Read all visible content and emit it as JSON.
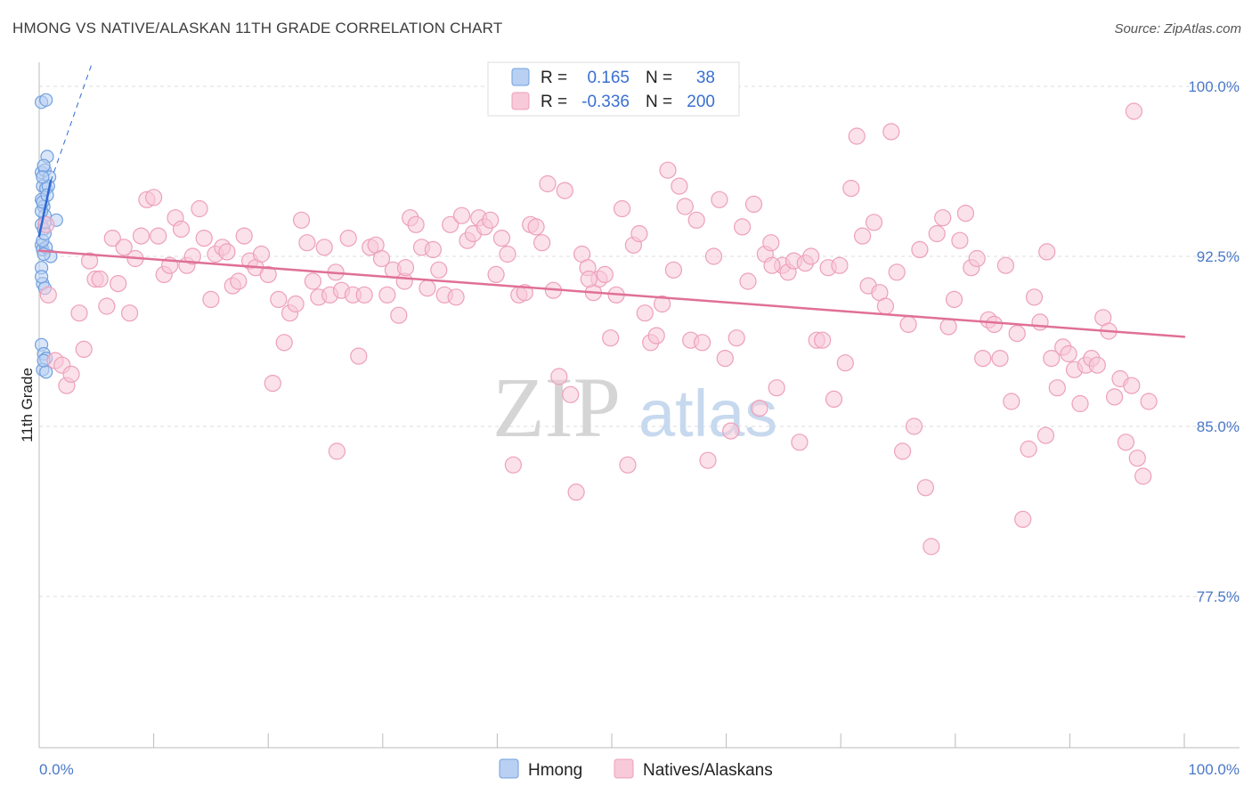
{
  "title": "HMONG VS NATIVE/ALASKAN 11TH GRADE CORRELATION CHART",
  "source": "Source: ZipAtlas.com",
  "watermark": {
    "part1": "ZIP",
    "part2": "atlas"
  },
  "chart_data": {
    "type": "scatter",
    "title": "HMONG VS NATIVE/ALASKAN 11TH GRADE CORRELATION CHART",
    "xlabel": "",
    "ylabel": "11th Grade",
    "xlim": [
      0,
      100
    ],
    "ylim": [
      70.5,
      101.5
    ],
    "x_tick_labels": [
      "0.0%",
      "100.0%"
    ],
    "y_ticks": [
      {
        "value": 100.0,
        "label": "100.0%"
      },
      {
        "value": 92.5,
        "label": "92.5%"
      },
      {
        "value": 85.0,
        "label": "85.0%"
      },
      {
        "value": 77.5,
        "label": "77.5%"
      }
    ],
    "legend": {
      "rows": [
        {
          "r_label": "R =",
          "r_value": "0.165",
          "n_label": "N =",
          "n_value": "38"
        },
        {
          "r_label": "R =",
          "r_value": "-0.336",
          "n_label": "N =",
          "n_value": "200"
        }
      ]
    },
    "series": [
      {
        "name": "Hmong",
        "color": "#6fa0de",
        "fill": "#b9d0f2",
        "trend": {
          "x1": 0.0,
          "y1": 93.4,
          "x2": 1.0,
          "y2": 95.8,
          "color": "#2f6ad4"
        },
        "trend_ext": {
          "x1": 1.0,
          "y1": 95.8,
          "x2": 4.6,
          "y2": 101.0
        },
        "points": [
          [
            0.2,
            99.3
          ],
          [
            0.6,
            99.4
          ],
          [
            0.2,
            96.2
          ],
          [
            0.5,
            96.3
          ],
          [
            0.7,
            96.9
          ],
          [
            0.9,
            96.0
          ],
          [
            0.3,
            95.6
          ],
          [
            0.6,
            95.5
          ],
          [
            0.8,
            95.6
          ],
          [
            0.2,
            95.0
          ],
          [
            0.4,
            94.7
          ],
          [
            0.5,
            94.3
          ],
          [
            1.5,
            94.1
          ],
          [
            0.2,
            93.9
          ],
          [
            0.4,
            93.7
          ],
          [
            0.2,
            93.0
          ],
          [
            0.3,
            92.8
          ],
          [
            0.6,
            92.9
          ],
          [
            1.0,
            92.5
          ],
          [
            0.2,
            92.0
          ],
          [
            0.3,
            91.3
          ],
          [
            0.5,
            91.1
          ],
          [
            0.2,
            88.6
          ],
          [
            0.4,
            88.2
          ],
          [
            0.6,
            88.0
          ],
          [
            0.3,
            87.5
          ],
          [
            0.6,
            87.4
          ],
          [
            0.2,
            94.5
          ],
          [
            0.3,
            93.2
          ],
          [
            0.4,
            96.5
          ],
          [
            0.3,
            94.9
          ],
          [
            0.7,
            95.2
          ],
          [
            0.5,
            93.5
          ],
          [
            0.2,
            91.6
          ],
          [
            0.4,
            87.9
          ],
          [
            0.3,
            96.0
          ],
          [
            0.5,
            94.0
          ],
          [
            0.4,
            92.6
          ]
        ]
      },
      {
        "name": "Natives/Alaskans",
        "color": "#eda0b9",
        "fill": "#f8c9d8",
        "trend": {
          "x1": 0.0,
          "y1": 92.75,
          "x2": 100.0,
          "y2": 88.95,
          "color": "#e07096"
        },
        "points": [
          [
            0.6,
            93.9
          ],
          [
            0.8,
            90.8
          ],
          [
            1.4,
            87.9
          ],
          [
            2.0,
            87.7
          ],
          [
            2.4,
            86.8
          ],
          [
            2.8,
            87.3
          ],
          [
            3.5,
            90.0
          ],
          [
            3.9,
            88.4
          ],
          [
            4.4,
            92.3
          ],
          [
            4.9,
            91.5
          ],
          [
            5.3,
            91.5
          ],
          [
            5.9,
            90.3
          ],
          [
            6.4,
            93.3
          ],
          [
            6.9,
            91.3
          ],
          [
            7.4,
            92.9
          ],
          [
            7.9,
            90.0
          ],
          [
            8.4,
            92.4
          ],
          [
            8.9,
            93.4
          ],
          [
            9.4,
            95.0
          ],
          [
            10.0,
            95.1
          ],
          [
            10.4,
            93.4
          ],
          [
            10.9,
            91.7
          ],
          [
            11.4,
            92.1
          ],
          [
            11.9,
            94.2
          ],
          [
            12.4,
            93.7
          ],
          [
            12.9,
            92.1
          ],
          [
            13.4,
            92.5
          ],
          [
            14.0,
            94.6
          ],
          [
            14.4,
            93.3
          ],
          [
            15.0,
            90.6
          ],
          [
            15.4,
            92.6
          ],
          [
            16.0,
            92.9
          ],
          [
            16.4,
            92.7
          ],
          [
            16.9,
            91.2
          ],
          [
            17.4,
            91.4
          ],
          [
            17.9,
            93.4
          ],
          [
            18.4,
            92.3
          ],
          [
            18.9,
            92.0
          ],
          [
            19.4,
            92.6
          ],
          [
            20.0,
            91.7
          ],
          [
            20.4,
            86.9
          ],
          [
            20.9,
            90.6
          ],
          [
            21.4,
            88.7
          ],
          [
            21.9,
            90.0
          ],
          [
            22.4,
            90.4
          ],
          [
            22.9,
            94.1
          ],
          [
            23.4,
            93.1
          ],
          [
            23.9,
            91.4
          ],
          [
            24.4,
            90.7
          ],
          [
            24.9,
            92.9
          ],
          [
            25.4,
            90.8
          ],
          [
            25.9,
            91.8
          ],
          [
            26.0,
            83.9
          ],
          [
            26.4,
            91.0
          ],
          [
            27.0,
            93.3
          ],
          [
            27.4,
            90.8
          ],
          [
            27.9,
            88.1
          ],
          [
            28.4,
            90.8
          ],
          [
            28.9,
            92.9
          ],
          [
            29.4,
            93.0
          ],
          [
            29.9,
            92.4
          ],
          [
            30.4,
            90.8
          ],
          [
            30.9,
            91.9
          ],
          [
            31.4,
            89.9
          ],
          [
            31.9,
            91.4
          ],
          [
            32.4,
            94.2
          ],
          [
            32.9,
            93.9
          ],
          [
            33.4,
            92.9
          ],
          [
            33.9,
            91.1
          ],
          [
            34.4,
            92.8
          ],
          [
            34.9,
            91.9
          ],
          [
            35.4,
            90.8
          ],
          [
            35.9,
            93.9
          ],
          [
            36.4,
            90.7
          ],
          [
            36.9,
            94.3
          ],
          [
            37.4,
            93.2
          ],
          [
            37.9,
            93.5
          ],
          [
            38.4,
            94.2
          ],
          [
            38.9,
            93.8
          ],
          [
            39.4,
            94.1
          ],
          [
            39.9,
            91.7
          ],
          [
            40.4,
            93.3
          ],
          [
            40.9,
            92.6
          ],
          [
            41.4,
            83.3
          ],
          [
            41.9,
            90.8
          ],
          [
            42.4,
            90.9
          ],
          [
            42.9,
            93.9
          ],
          [
            43.4,
            93.8
          ],
          [
            43.9,
            93.1
          ],
          [
            44.4,
            95.7
          ],
          [
            44.9,
            91.0
          ],
          [
            45.4,
            87.2
          ],
          [
            45.9,
            95.4
          ],
          [
            46.4,
            86.4
          ],
          [
            46.9,
            82.1
          ],
          [
            47.4,
            92.6
          ],
          [
            47.9,
            92.0
          ],
          [
            48.4,
            90.9
          ],
          [
            48.9,
            91.5
          ],
          [
            49.4,
            91.7
          ],
          [
            49.9,
            88.9
          ],
          [
            50.4,
            90.8
          ],
          [
            50.9,
            94.6
          ],
          [
            51.4,
            83.3
          ],
          [
            51.9,
            93.0
          ],
          [
            52.4,
            93.5
          ],
          [
            52.9,
            90.0
          ],
          [
            53.4,
            88.7
          ],
          [
            53.9,
            89.0
          ],
          [
            54.4,
            90.4
          ],
          [
            54.9,
            96.3
          ],
          [
            55.4,
            91.9
          ],
          [
            55.9,
            95.6
          ],
          [
            56.4,
            94.7
          ],
          [
            56.9,
            88.8
          ],
          [
            57.4,
            94.1
          ],
          [
            57.9,
            88.7
          ],
          [
            58.4,
            83.5
          ],
          [
            58.9,
            92.5
          ],
          [
            59.4,
            95.0
          ],
          [
            59.9,
            88.0
          ],
          [
            60.4,
            84.8
          ],
          [
            60.9,
            88.9
          ],
          [
            61.4,
            93.8
          ],
          [
            61.9,
            91.4
          ],
          [
            62.4,
            94.8
          ],
          [
            62.9,
            85.8
          ],
          [
            63.4,
            92.6
          ],
          [
            63.9,
            93.1
          ],
          [
            64.4,
            86.7
          ],
          [
            64.9,
            92.1
          ],
          [
            65.4,
            91.8
          ],
          [
            65.9,
            92.3
          ],
          [
            66.4,
            84.3
          ],
          [
            66.9,
            92.2
          ],
          [
            67.4,
            92.5
          ],
          [
            67.9,
            88.8
          ],
          [
            68.4,
            88.8
          ],
          [
            68.9,
            92.0
          ],
          [
            69.4,
            86.2
          ],
          [
            69.9,
            92.1
          ],
          [
            70.4,
            87.8
          ],
          [
            70.9,
            95.5
          ],
          [
            71.4,
            97.8
          ],
          [
            71.9,
            93.4
          ],
          [
            72.4,
            91.2
          ],
          [
            72.9,
            94.0
          ],
          [
            73.4,
            90.9
          ],
          [
            73.9,
            90.3
          ],
          [
            74.4,
            98.0
          ],
          [
            74.9,
            91.8
          ],
          [
            75.4,
            83.9
          ],
          [
            75.9,
            89.5
          ],
          [
            76.4,
            85.0
          ],
          [
            76.9,
            92.8
          ],
          [
            77.4,
            82.3
          ],
          [
            77.9,
            79.7
          ],
          [
            78.4,
            93.5
          ],
          [
            78.9,
            94.2
          ],
          [
            79.4,
            89.4
          ],
          [
            79.9,
            90.6
          ],
          [
            80.4,
            93.2
          ],
          [
            80.9,
            94.4
          ],
          [
            81.4,
            92.0
          ],
          [
            81.9,
            92.4
          ],
          [
            82.4,
            88.0
          ],
          [
            82.9,
            89.7
          ],
          [
            83.4,
            89.5
          ],
          [
            83.9,
            88.0
          ],
          [
            84.4,
            92.1
          ],
          [
            84.9,
            86.1
          ],
          [
            85.4,
            89.1
          ],
          [
            85.9,
            80.9
          ],
          [
            86.4,
            84.0
          ],
          [
            86.9,
            90.7
          ],
          [
            87.4,
            89.6
          ],
          [
            87.9,
            84.6
          ],
          [
            88.4,
            88.0
          ],
          [
            88.9,
            86.7
          ],
          [
            89.4,
            88.5
          ],
          [
            89.9,
            88.2
          ],
          [
            90.4,
            87.5
          ],
          [
            90.9,
            86.0
          ],
          [
            91.4,
            87.7
          ],
          [
            91.9,
            88.0
          ],
          [
            92.4,
            87.7
          ],
          [
            92.9,
            89.8
          ],
          [
            93.4,
            89.2
          ],
          [
            93.9,
            86.3
          ],
          [
            94.4,
            87.1
          ],
          [
            94.9,
            84.3
          ],
          [
            95.4,
            86.8
          ],
          [
            95.9,
            83.6
          ],
          [
            96.4,
            82.8
          ],
          [
            96.9,
            86.1
          ],
          [
            95.6,
            98.9
          ],
          [
            88.0,
            92.7
          ],
          [
            64.0,
            92.1
          ],
          [
            48.0,
            91.5
          ],
          [
            32.0,
            92.0
          ]
        ]
      }
    ]
  }
}
